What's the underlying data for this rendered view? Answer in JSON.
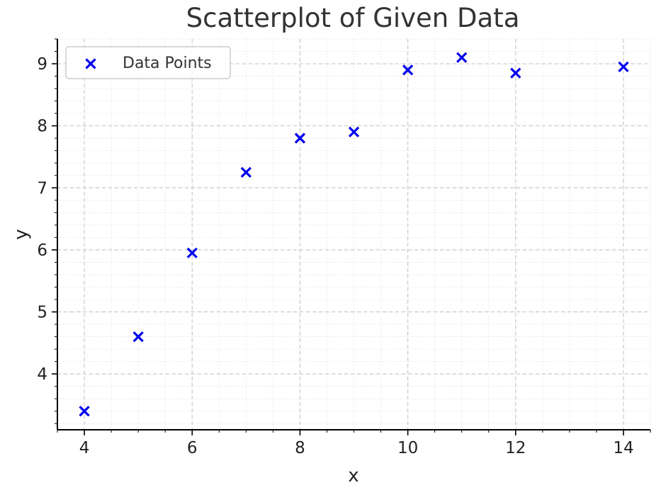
{
  "chart_data": {
    "type": "scatter",
    "title": "Scatterplot of Given Data",
    "xlabel": "x",
    "ylabel": "y",
    "xlim": [
      3.5,
      14.5
    ],
    "ylim": [
      3.1,
      9.4
    ],
    "xticks": [
      4,
      6,
      8,
      10,
      12,
      14
    ],
    "yticks": [
      4,
      5,
      6,
      7,
      8,
      9
    ],
    "x_minor_step": 0.5,
    "y_minor_step": 0.2,
    "grid": true,
    "legend_position": "top-left",
    "series": [
      {
        "name": "Data Points",
        "marker": "x",
        "color": "#0000ee",
        "points": [
          {
            "x": 4,
            "y": 3.4
          },
          {
            "x": 5,
            "y": 4.6
          },
          {
            "x": 6,
            "y": 5.95
          },
          {
            "x": 7,
            "y": 7.25
          },
          {
            "x": 8,
            "y": 7.8
          },
          {
            "x": 9,
            "y": 7.9
          },
          {
            "x": 10,
            "y": 8.9
          },
          {
            "x": 11,
            "y": 9.1
          },
          {
            "x": 12,
            "y": 8.85
          },
          {
            "x": 14,
            "y": 8.95
          }
        ]
      }
    ]
  },
  "colors": {
    "axis": "#000000",
    "grid_major": "#c8c8c8",
    "grid_minor": "#dddddd",
    "legend_border": "#cccccc"
  }
}
